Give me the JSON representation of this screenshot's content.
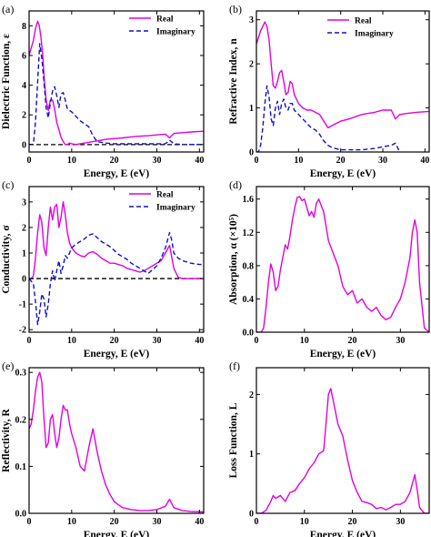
{
  "colors": {
    "real": "#e000e0",
    "imaginary": "#1010c8",
    "axis": "#000000",
    "zero_line": "#000000"
  },
  "chart_data": [
    {
      "tag": "(a)",
      "type": "line",
      "xlabel": "Energy, E (eV)",
      "ylabel": "Dielectric Function, ε",
      "xlim": [
        0,
        41
      ],
      "ylim": [
        -0.5,
        9
      ],
      "xticks": [
        0,
        10,
        20,
        30,
        40
      ],
      "yticks": [
        0,
        2,
        4,
        6,
        8
      ],
      "grid": false,
      "legend_position": "top-right",
      "zero_line": true,
      "series": [
        {
          "name": "Real",
          "style": "solid",
          "color": "#e000e0",
          "x": [
            0,
            0.5,
            1,
            1.5,
            2,
            2.4,
            2.8,
            3.2,
            3.6,
            4,
            4.5,
            5,
            5.5,
            6,
            6.5,
            7,
            7.5,
            8,
            8.5,
            9,
            9.5,
            10,
            11,
            12,
            13,
            14,
            15,
            16,
            17,
            18,
            20,
            22,
            25,
            28,
            30,
            32,
            33,
            34,
            36,
            38,
            41
          ],
          "y": [
            6.0,
            6.5,
            7.0,
            7.8,
            8.3,
            8.0,
            7.2,
            6.0,
            4.2,
            3.0,
            2.3,
            3.0,
            3.0,
            2.4,
            1.5,
            1.0,
            0.5,
            0.2,
            0.0,
            0.0,
            0.1,
            0.05,
            0.0,
            0.05,
            0.1,
            0.15,
            0.2,
            0.25,
            0.3,
            0.35,
            0.4,
            0.45,
            0.55,
            0.6,
            0.65,
            0.7,
            0.45,
            0.75,
            0.8,
            0.85,
            0.9
          ]
        },
        {
          "name": "Imaginary",
          "style": "dashed",
          "color": "#1010c8",
          "x": [
            0,
            1,
            1.5,
            2,
            2.5,
            3,
            3.5,
            4,
            4.5,
            5,
            5.5,
            6,
            6.5,
            7,
            7.5,
            8,
            8.5,
            9,
            10,
            11,
            12,
            13,
            14,
            15,
            16,
            17,
            18,
            20,
            25,
            30,
            32,
            33,
            34,
            36,
            41
          ],
          "y": [
            0,
            0,
            1.5,
            4.2,
            6.8,
            5.8,
            4.2,
            2.5,
            1.8,
            2.8,
            3.6,
            3.9,
            3.3,
            2.5,
            3.4,
            3.5,
            3.0,
            2.4,
            2.2,
            1.9,
            1.6,
            1.4,
            1.2,
            0.6,
            0.2,
            0.15,
            0.1,
            0.05,
            0.05,
            0.05,
            0.05,
            0.3,
            0.05,
            0.0,
            0.0
          ]
        }
      ]
    },
    {
      "tag": "(b)",
      "type": "line",
      "xlabel": "Energy, E (eV)",
      "ylabel": "Refractive Index, n",
      "xlim": [
        0,
        41
      ],
      "ylim": [
        0,
        3.2
      ],
      "xticks": [
        0,
        10,
        20,
        30,
        40
      ],
      "yticks": [
        0,
        1,
        2,
        3
      ],
      "grid": false,
      "legend_position": "top-right",
      "zero_line": false,
      "series": [
        {
          "name": "Real",
          "style": "solid",
          "color": "#e000e0",
          "x": [
            0,
            0.5,
            1,
            1.5,
            2,
            2.5,
            3,
            3.5,
            4,
            4.5,
            5,
            5.5,
            6,
            6.5,
            7,
            7.5,
            8,
            8.5,
            9,
            10,
            11,
            12,
            13,
            14,
            15,
            16,
            17,
            18,
            20,
            22,
            25,
            28,
            30,
            32,
            33,
            34,
            36,
            38,
            41
          ],
          "y": [
            2.45,
            2.6,
            2.75,
            2.85,
            2.95,
            2.85,
            2.55,
            2.0,
            1.5,
            1.45,
            1.6,
            1.8,
            1.85,
            1.6,
            1.3,
            1.35,
            1.6,
            1.55,
            1.3,
            1.1,
            1.0,
            0.95,
            0.95,
            0.9,
            0.85,
            0.7,
            0.55,
            0.6,
            0.7,
            0.75,
            0.85,
            0.9,
            0.95,
            0.95,
            0.75,
            0.85,
            0.88,
            0.9,
            0.92
          ]
        },
        {
          "name": "Imaginary",
          "style": "dashed",
          "color": "#1010c8",
          "x": [
            0,
            0.5,
            1,
            1.5,
            2,
            2.5,
            3,
            3.5,
            4,
            4.5,
            5,
            5.5,
            6,
            6.5,
            7,
            7.5,
            8,
            8.5,
            9,
            10,
            11,
            12,
            13,
            14,
            15,
            16,
            17,
            18,
            20,
            22,
            25,
            28,
            30,
            32,
            33,
            34
          ],
          "y": [
            0.0,
            0.0,
            0.15,
            0.55,
            1.1,
            1.5,
            1.25,
            0.75,
            0.6,
            1.0,
            1.15,
            0.85,
            1.1,
            1.2,
            1.0,
            0.95,
            1.1,
            1.1,
            0.95,
            0.85,
            0.75,
            0.65,
            0.55,
            0.5,
            0.4,
            0.25,
            0.15,
            0.1,
            0.05,
            0.05,
            0.05,
            0.08,
            0.12,
            0.15,
            0.2,
            0.0
          ]
        }
      ]
    },
    {
      "tag": "(c)",
      "type": "line",
      "xlabel": "Energy, E (eV)",
      "ylabel": "Conductivity, σ",
      "xlim": [
        0,
        41
      ],
      "ylim": [
        -2.1,
        3.6
      ],
      "xticks": [
        0,
        10,
        20,
        30,
        40
      ],
      "yticks": [
        -2,
        -1,
        0,
        1,
        2,
        3
      ],
      "grid": false,
      "legend_position": "top-right",
      "zero_line": true,
      "series": [
        {
          "name": "Real",
          "style": "solid",
          "color": "#e000e0",
          "x": [
            0,
            0.5,
            1,
            1.5,
            2,
            2.5,
            3,
            3.5,
            4,
            4.5,
            5,
            5.5,
            6,
            6.5,
            7,
            7.5,
            8,
            8.5,
            9,
            9.5,
            10,
            11,
            12,
            13,
            14,
            15,
            16,
            17,
            18,
            19,
            20,
            21,
            22,
            23,
            24,
            25,
            26,
            27,
            28,
            29,
            30,
            31,
            32,
            33,
            34,
            35,
            36,
            38,
            40,
            41
          ],
          "y": [
            0,
            0,
            0.1,
            0.8,
            1.8,
            2.5,
            2.2,
            1.2,
            0.9,
            2.0,
            2.8,
            2.3,
            2.8,
            2.9,
            2.0,
            2.4,
            3.0,
            2.5,
            1.8,
            1.4,
            1.2,
            1.0,
            0.9,
            0.85,
            1.0,
            1.05,
            0.95,
            0.8,
            0.7,
            0.6,
            0.6,
            0.55,
            0.5,
            0.4,
            0.35,
            0.3,
            0.25,
            0.3,
            0.4,
            0.5,
            0.6,
            0.7,
            1.0,
            1.3,
            0.4,
            0.05,
            0.0,
            0.0,
            0.0,
            0.0
          ]
        },
        {
          "name": "Imaginary",
          "style": "dashed",
          "color": "#1010c8",
          "x": [
            0,
            1,
            1.5,
            2,
            2.5,
            3,
            3.5,
            4,
            4.5,
            5,
            5.5,
            6,
            6.5,
            7,
            7.5,
            8,
            8.5,
            9,
            10,
            11,
            12,
            13,
            14,
            15,
            16,
            17,
            18,
            19,
            20,
            21,
            22,
            23,
            24,
            25,
            26,
            27,
            28,
            29,
            30,
            31,
            32,
            33,
            33.5,
            34,
            35,
            36,
            38,
            40,
            41
          ],
          "y": [
            0,
            -0.2,
            -0.9,
            -1.8,
            -1.3,
            -0.6,
            -0.8,
            -1.5,
            -1.0,
            -0.2,
            0.3,
            -0.1,
            0.3,
            0.7,
            0.2,
            0.5,
            0.9,
            0.8,
            1.2,
            1.35,
            1.45,
            1.55,
            1.7,
            1.75,
            1.6,
            1.45,
            1.35,
            1.25,
            1.1,
            0.95,
            0.85,
            0.75,
            0.6,
            0.5,
            0.4,
            0.3,
            0.2,
            0.35,
            0.5,
            0.8,
            1.2,
            1.8,
            1.5,
            1.0,
            0.8,
            0.7,
            0.6,
            0.55,
            0.55
          ]
        }
      ]
    },
    {
      "tag": "(d)",
      "type": "line",
      "xlabel": "Energy, E (eV)",
      "ylabel": "Absorption, α (×10⁵)",
      "xlim": [
        0,
        36
      ],
      "ylim": [
        0,
        1.75
      ],
      "xticks": [
        0,
        10,
        20,
        30
      ],
      "yticks": [
        0.0,
        0.4,
        0.8,
        1.2,
        1.6
      ],
      "grid": false,
      "legend_position": "",
      "zero_line": false,
      "series": [
        {
          "name": "",
          "style": "solid",
          "color": "#e000e0",
          "x": [
            0,
            1,
            1.5,
            2,
            2.5,
            3,
            3.5,
            4,
            4.5,
            5,
            5.5,
            6,
            6.5,
            7,
            7.5,
            8,
            8.5,
            9,
            9.5,
            10,
            10.5,
            11,
            11.5,
            12,
            12.5,
            13,
            13.5,
            14,
            15,
            16,
            17,
            18,
            19,
            20,
            21,
            22,
            23,
            24,
            25,
            26,
            27,
            28,
            29,
            30,
            31,
            32,
            32.5,
            33,
            33.5,
            34,
            35,
            36
          ],
          "y": [
            0,
            0,
            0.05,
            0.3,
            0.6,
            0.82,
            0.72,
            0.5,
            0.55,
            0.75,
            0.9,
            1.05,
            1.0,
            1.15,
            1.35,
            1.5,
            1.62,
            1.63,
            1.58,
            1.6,
            1.5,
            1.4,
            1.45,
            1.38,
            1.55,
            1.6,
            1.52,
            1.45,
            1.1,
            0.95,
            0.8,
            0.55,
            0.45,
            0.5,
            0.35,
            0.4,
            0.3,
            0.25,
            0.3,
            0.2,
            0.15,
            0.18,
            0.3,
            0.4,
            0.6,
            0.9,
            1.2,
            1.35,
            1.2,
            0.6,
            0.05,
            0.0
          ]
        }
      ]
    },
    {
      "tag": "(e)",
      "type": "line",
      "xlabel": "Energy, E (eV)",
      "ylabel": "Reflectivity, R",
      "xlim": [
        0,
        41
      ],
      "ylim": [
        0,
        0.31
      ],
      "xticks": [
        0,
        10,
        20,
        30,
        40
      ],
      "yticks": [
        0.0,
        0.1,
        0.2,
        0.3
      ],
      "grid": false,
      "legend_position": "",
      "zero_line": false,
      "series": [
        {
          "name": "",
          "style": "solid",
          "color": "#e000e0",
          "x": [
            0,
            0.5,
            1,
            1.5,
            2,
            2.5,
            3,
            3.5,
            4,
            4.5,
            5,
            5.5,
            6,
            6.5,
            7,
            7.5,
            8,
            8.5,
            9,
            9.5,
            10,
            11,
            12,
            13,
            14,
            15,
            16,
            17,
            18,
            19,
            20,
            21,
            22,
            24,
            26,
            28,
            30,
            32,
            33,
            34,
            36,
            38,
            41
          ],
          "y": [
            0.18,
            0.19,
            0.22,
            0.26,
            0.29,
            0.3,
            0.28,
            0.2,
            0.14,
            0.15,
            0.2,
            0.21,
            0.17,
            0.14,
            0.16,
            0.2,
            0.23,
            0.22,
            0.22,
            0.19,
            0.17,
            0.14,
            0.1,
            0.09,
            0.14,
            0.18,
            0.13,
            0.09,
            0.06,
            0.04,
            0.025,
            0.018,
            0.012,
            0.008,
            0.006,
            0.006,
            0.008,
            0.015,
            0.03,
            0.012,
            0.006,
            0.004,
            0.003
          ]
        }
      ]
    },
    {
      "tag": "(f)",
      "type": "line",
      "xlabel": "Energy, E (eV)",
      "ylabel": "Loss Function, L",
      "xlim": [
        0,
        36
      ],
      "ylim": [
        0,
        2.45
      ],
      "xticks": [
        0,
        10,
        20,
        30
      ],
      "yticks": [
        0,
        1,
        2
      ],
      "grid": false,
      "legend_position": "",
      "zero_line": false,
      "series": [
        {
          "name": "",
          "style": "solid",
          "color": "#e000e0",
          "x": [
            0,
            1,
            2,
            3,
            3.5,
            4,
            5,
            6,
            7,
            8,
            9,
            10,
            11,
            12,
            13,
            14,
            14.5,
            15,
            15.5,
            16,
            17,
            18,
            19,
            20,
            21,
            22,
            23,
            24,
            25,
            26,
            27,
            28,
            29,
            30,
            31,
            32,
            33,
            33.5,
            34,
            35,
            36
          ],
          "y": [
            0.0,
            0.0,
            0.05,
            0.2,
            0.3,
            0.25,
            0.3,
            0.2,
            0.35,
            0.38,
            0.5,
            0.6,
            0.75,
            0.85,
            1.0,
            1.05,
            1.5,
            2.0,
            2.1,
            1.9,
            1.5,
            1.3,
            0.9,
            0.55,
            0.35,
            0.2,
            0.18,
            0.15,
            0.08,
            0.1,
            0.06,
            0.1,
            0.15,
            0.15,
            0.2,
            0.35,
            0.65,
            0.4,
            0.1,
            0.0,
            0.0
          ]
        }
      ]
    }
  ]
}
